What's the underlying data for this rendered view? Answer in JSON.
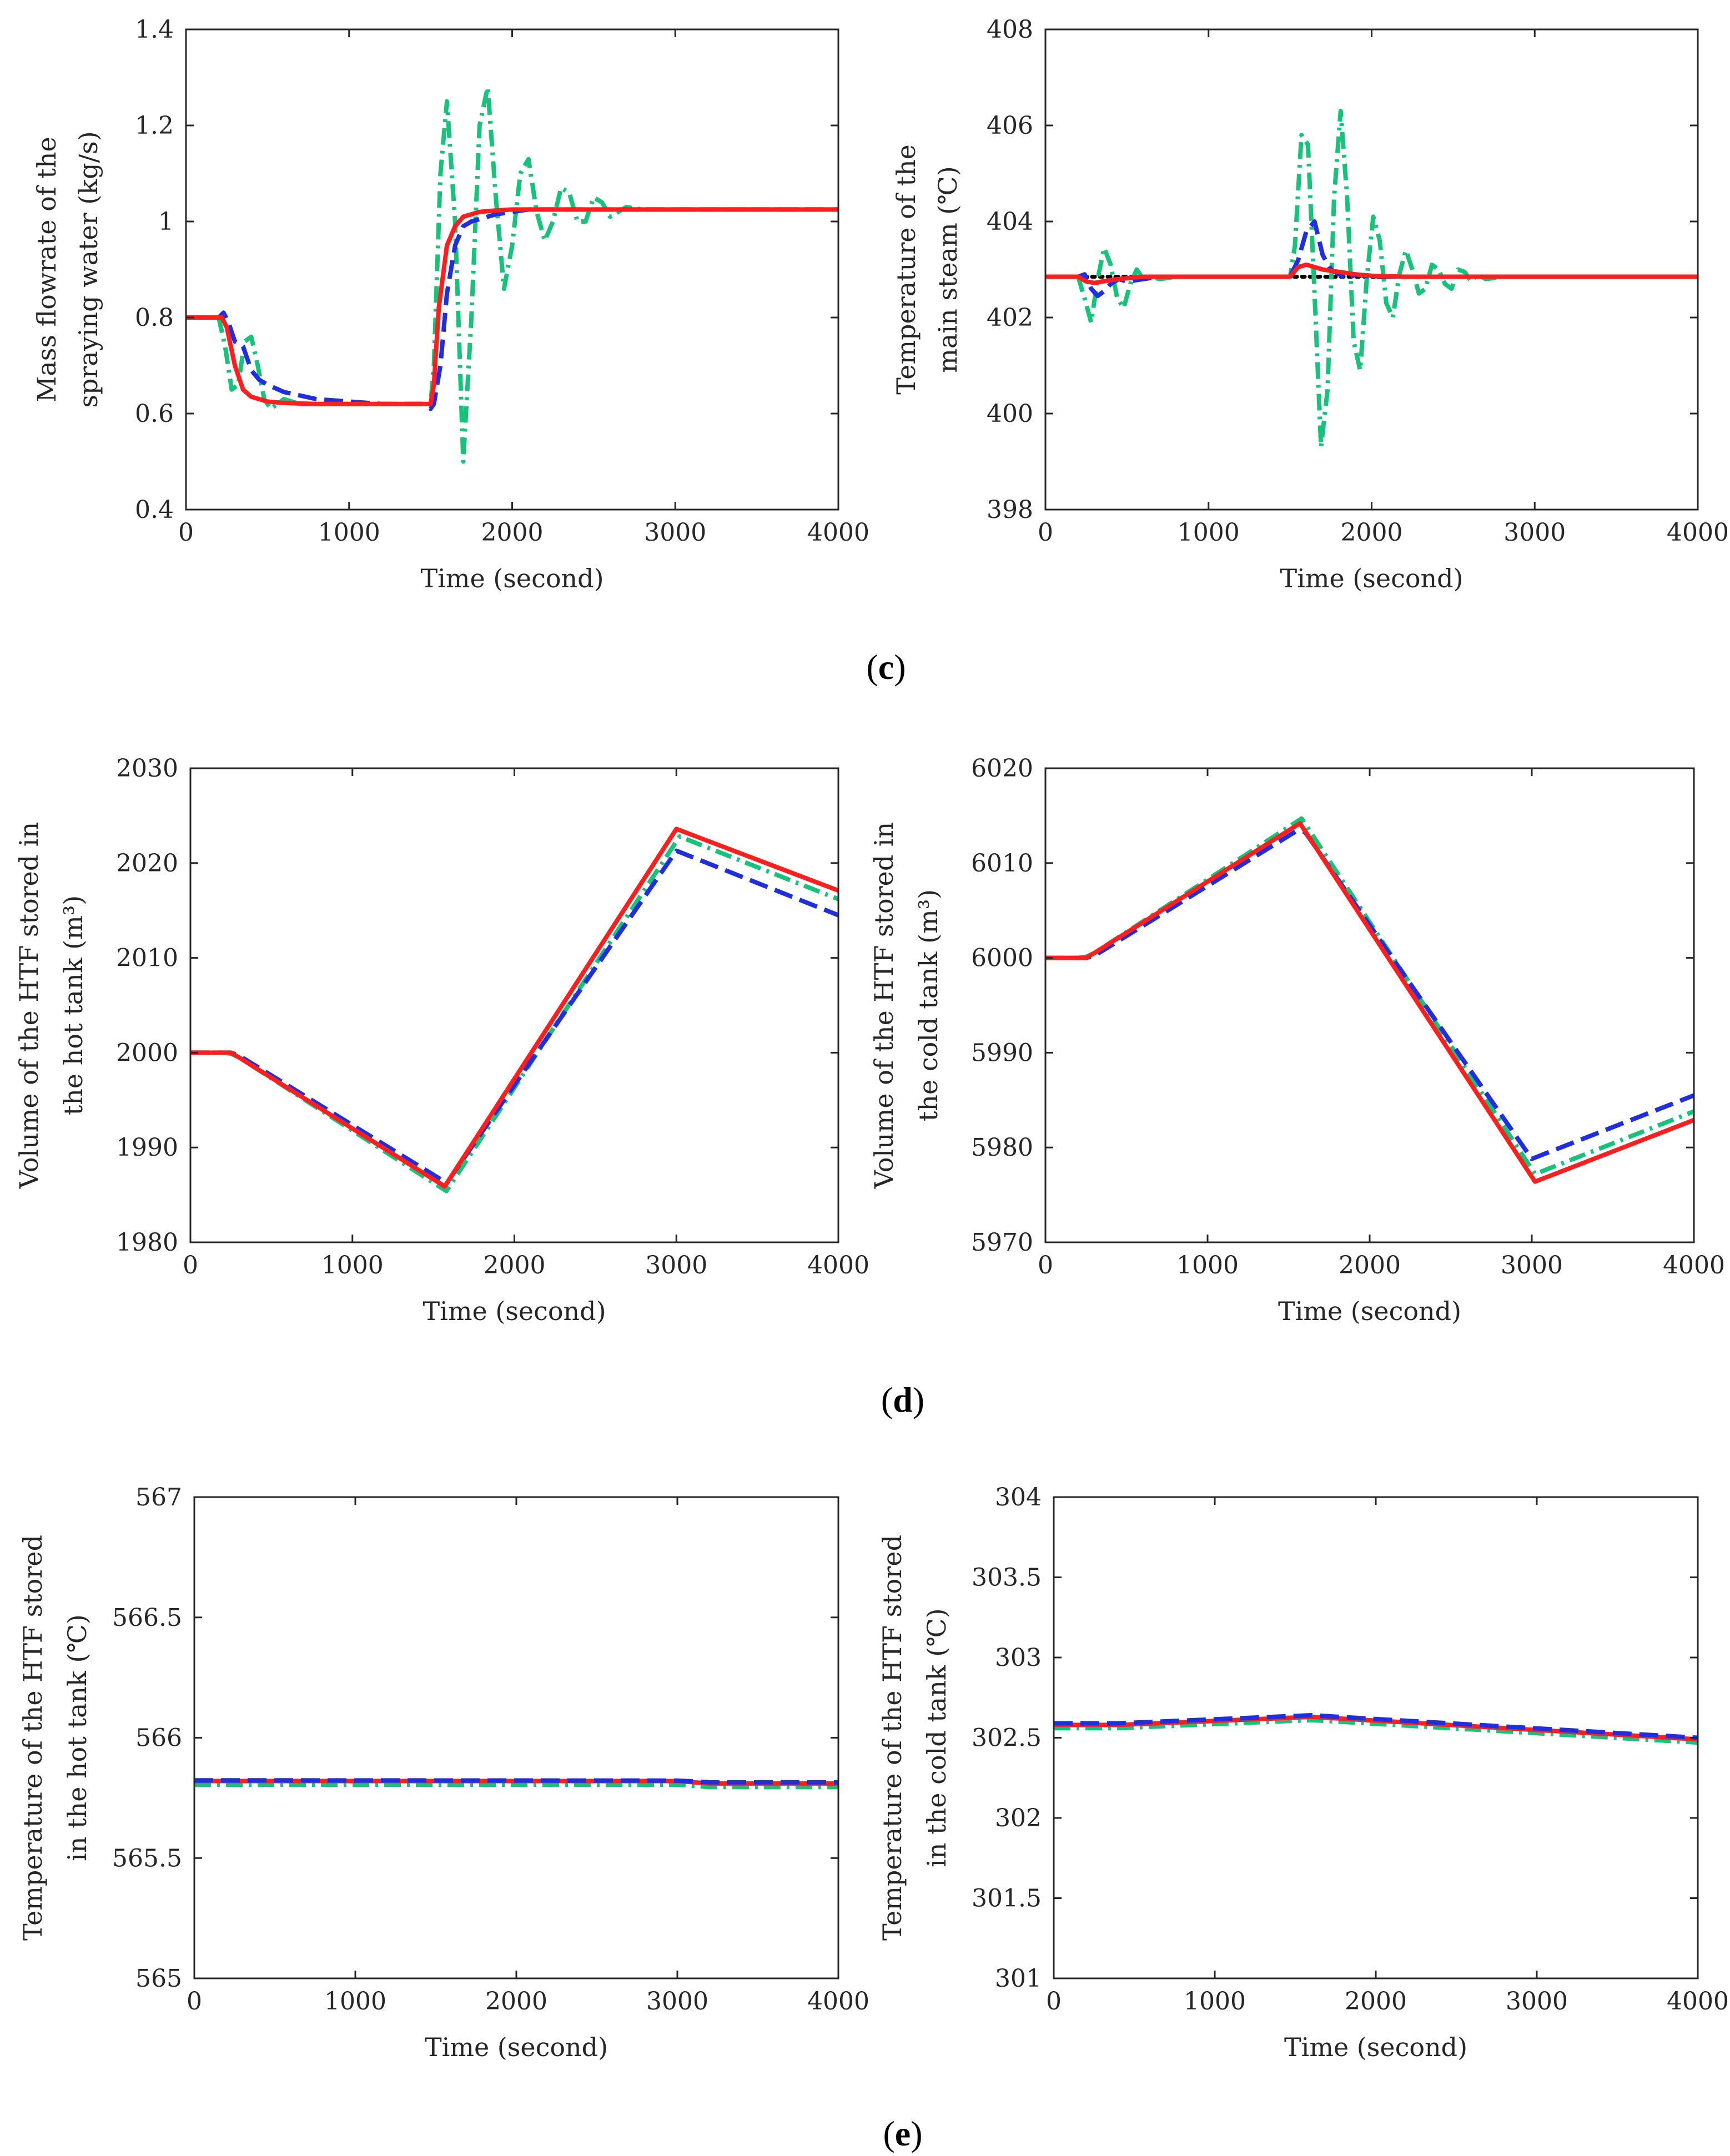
{
  "colors": {
    "red": "#ff1f1f",
    "blue": "#1f2fe0",
    "green": "#19c27a",
    "black": "#000000",
    "axis": "#262626"
  },
  "panel_labels": [
    {
      "id": "c",
      "open": "(",
      "letter": "c",
      "close": ")"
    },
    {
      "id": "d",
      "open": "(",
      "letter": "d",
      "close": ")"
    },
    {
      "id": "e",
      "open": "(",
      "letter": "e",
      "close": ")"
    }
  ],
  "chart_data": [
    {
      "id": "c-left",
      "type": "line",
      "xlabel": "Time (second)",
      "ylabel": [
        "Mass flowrate of the",
        "spraying water (kg/s)"
      ],
      "xlim": [
        0,
        4000
      ],
      "ylim": [
        0.4,
        1.4
      ],
      "xticks": [
        0,
        1000,
        2000,
        3000,
        4000
      ],
      "yticks": [
        0.4,
        0.6,
        0.8,
        1,
        1.2,
        1.4
      ],
      "ytick_labels": [
        "0.4",
        "0.6",
        "0.8",
        "1",
        "1.2",
        "1.4"
      ],
      "grid": false,
      "series": [
        {
          "color": "green",
          "style": "dashdot",
          "x": [
            0,
            200,
            240,
            280,
            320,
            360,
            400,
            440,
            480,
            520,
            560,
            600,
            650,
            700,
            800,
            1000,
            1500,
            1520,
            1560,
            1600,
            1650,
            1700,
            1750,
            1800,
            1850,
            1900,
            1950,
            2000,
            2050,
            2100,
            2150,
            2200,
            2250,
            2300,
            2350,
            2400,
            2450,
            2500,
            2550,
            2600,
            2650,
            2700,
            2800,
            3000,
            4000
          ],
          "y": [
            0.8,
            0.8,
            0.74,
            0.65,
            0.66,
            0.75,
            0.76,
            0.7,
            0.63,
            0.61,
            0.62,
            0.63,
            0.625,
            0.62,
            0.62,
            0.62,
            0.62,
            0.7,
            1.1,
            1.25,
            1.0,
            0.5,
            0.8,
            1.2,
            1.28,
            1.05,
            0.86,
            0.95,
            1.1,
            1.13,
            1.02,
            0.96,
            1.0,
            1.07,
            1.06,
            1.0,
            1.0,
            1.05,
            1.04,
            1.01,
            1.02,
            1.03,
            1.025,
            1.025,
            1.025
          ]
        },
        {
          "color": "blue",
          "style": "dashed",
          "x": [
            0,
            200,
            230,
            260,
            300,
            350,
            400,
            450,
            500,
            600,
            800,
            1000,
            1200,
            1450,
            1500,
            1520,
            1560,
            1600,
            1650,
            1700,
            1750,
            1800,
            1900,
            2000,
            2100,
            2200,
            2400,
            3000,
            4000
          ],
          "y": [
            0.8,
            0.8,
            0.81,
            0.79,
            0.75,
            0.74,
            0.69,
            0.67,
            0.66,
            0.645,
            0.63,
            0.625,
            0.62,
            0.62,
            0.61,
            0.62,
            0.7,
            0.85,
            0.95,
            0.99,
            1.0,
            1.005,
            1.015,
            1.02,
            1.025,
            1.025,
            1.025,
            1.025,
            1.025
          ]
        },
        {
          "color": "red",
          "style": "solid",
          "x": [
            0,
            220,
            250,
            300,
            350,
            400,
            500,
            600,
            800,
            1000,
            1500,
            1520,
            1550,
            1600,
            1650,
            1700,
            1800,
            1900,
            2000,
            2200,
            2500,
            3000,
            4000
          ],
          "y": [
            0.8,
            0.8,
            0.78,
            0.7,
            0.65,
            0.635,
            0.625,
            0.622,
            0.62,
            0.62,
            0.62,
            0.66,
            0.82,
            0.95,
            0.99,
            1.01,
            1.02,
            1.023,
            1.025,
            1.025,
            1.025,
            1.025,
            1.025
          ]
        }
      ]
    },
    {
      "id": "c-right",
      "type": "line",
      "xlabel": "Time (second)",
      "ylabel": [
        "Temperature of the",
        "main steam (℃)"
      ],
      "xlim": [
        0,
        4000
      ],
      "ylim": [
        398,
        408
      ],
      "xticks": [
        0,
        1000,
        2000,
        3000,
        4000
      ],
      "yticks": [
        398,
        400,
        402,
        404,
        406,
        408
      ],
      "ytick_labels": [
        "398",
        "400",
        "402",
        "404",
        "406",
        "408"
      ],
      "grid": false,
      "series": [
        {
          "color": "black",
          "style": "dotted",
          "x": [
            0,
            4000
          ],
          "y": [
            402.85,
            402.85
          ]
        },
        {
          "color": "green",
          "style": "dashdot",
          "x": [
            0,
            200,
            240,
            280,
            320,
            360,
            400,
            440,
            480,
            520,
            560,
            600,
            650,
            700,
            800,
            1000,
            1500,
            1530,
            1570,
            1610,
            1650,
            1690,
            1730,
            1770,
            1810,
            1850,
            1890,
            1930,
            1970,
            2010,
            2050,
            2090,
            2130,
            2170,
            2210,
            2250,
            2290,
            2330,
            2370,
            2410,
            2450,
            2490,
            2530,
            2570,
            2610,
            2650,
            2700,
            2800,
            3000,
            4000
          ],
          "y": [
            402.85,
            402.85,
            402.4,
            401.9,
            402.8,
            403.45,
            403.1,
            402.4,
            402.2,
            402.7,
            403.0,
            402.8,
            402.85,
            402.8,
            402.85,
            402.85,
            402.85,
            403.5,
            405.8,
            405.6,
            402.5,
            399.3,
            400.5,
            404.5,
            406.3,
            404.5,
            401.5,
            400.9,
            402.8,
            404.1,
            403.6,
            402.3,
            402.0,
            402.9,
            403.4,
            403.0,
            402.5,
            402.6,
            403.1,
            403.0,
            402.7,
            402.6,
            403.0,
            402.95,
            402.75,
            402.9,
            402.8,
            402.85,
            402.85,
            402.85
          ]
        },
        {
          "color": "blue",
          "style": "dashed",
          "x": [
            0,
            200,
            240,
            280,
            320,
            360,
            400,
            450,
            500,
            600,
            700,
            1000,
            1500,
            1550,
            1600,
            1650,
            1700,
            1750,
            1800,
            1850,
            1900,
            2000,
            2100,
            2300,
            3000,
            4000
          ],
          "y": [
            402.85,
            402.85,
            402.9,
            402.6,
            402.45,
            402.55,
            402.7,
            402.8,
            402.75,
            402.8,
            402.85,
            402.85,
            402.85,
            403.2,
            403.8,
            404.0,
            403.3,
            403.0,
            402.9,
            402.8,
            402.9,
            402.85,
            402.85,
            402.85,
            402.85,
            402.85
          ]
        },
        {
          "color": "red",
          "style": "solid",
          "x": [
            0,
            200,
            250,
            300,
            400,
            500,
            600,
            800,
            1000,
            1500,
            1550,
            1600,
            1650,
            1700,
            1800,
            1900,
            2000,
            2200,
            3000,
            4000
          ],
          "y": [
            402.85,
            402.85,
            402.75,
            402.72,
            402.78,
            402.82,
            402.85,
            402.85,
            402.85,
            402.85,
            403.05,
            403.1,
            403.05,
            403.0,
            402.95,
            402.9,
            402.87,
            402.85,
            402.85,
            402.85
          ]
        }
      ]
    },
    {
      "id": "d-left",
      "type": "line",
      "xlabel": "Time (second)",
      "ylabel": [
        "Volume of the HTF stored in",
        "the hot tank (m³)"
      ],
      "xlim": [
        0,
        4000
      ],
      "ylim": [
        1980,
        2030
      ],
      "xticks": [
        0,
        1000,
        2000,
        3000,
        4000
      ],
      "yticks": [
        1980,
        1990,
        2000,
        2010,
        2020,
        2030
      ],
      "ytick_labels": [
        "1980",
        "1990",
        "2000",
        "2010",
        "2020",
        "2030"
      ],
      "grid": false,
      "series": [
        {
          "color": "green",
          "style": "dashdot",
          "x": [
            0,
            200,
            250,
            300,
            1580,
            3020,
            4000
          ],
          "y": [
            2000,
            2000,
            1999.9,
            1999.5,
            1985.4,
            2022.8,
            2016.2
          ]
        },
        {
          "color": "blue",
          "style": "dashed",
          "x": [
            0,
            250,
            300,
            1550,
            1600,
            3000,
            4000
          ],
          "y": [
            2000,
            2000,
            1999.7,
            1986.6,
            1986.7,
            2021.3,
            2014.5
          ]
        },
        {
          "color": "red",
          "style": "solid",
          "x": [
            0,
            250,
            300,
            1570,
            3000,
            4000
          ],
          "y": [
            2000,
            2000,
            1999.5,
            1985.9,
            2023.6,
            2017.1
          ]
        }
      ]
    },
    {
      "id": "d-right",
      "type": "line",
      "xlabel": "Time (second)",
      "ylabel": [
        "Volume of the HTF stored in",
        "the cold tank (m³)"
      ],
      "xlim": [
        0,
        4000
      ],
      "ylim": [
        5970,
        6020
      ],
      "xticks": [
        0,
        1000,
        2000,
        3000,
        4000
      ],
      "yticks": [
        5970,
        5980,
        5990,
        6000,
        6010,
        6020
      ],
      "ytick_labels": [
        "5970",
        "5980",
        "5990",
        "6000",
        "6010",
        "6020"
      ],
      "grid": false,
      "series": [
        {
          "color": "green",
          "style": "dashdot",
          "x": [
            0,
            200,
            250,
            300,
            1580,
            3020,
            4000
          ],
          "y": [
            6000,
            6000,
            6000.1,
            6000.5,
            6014.7,
            5977.2,
            5983.8
          ]
        },
        {
          "color": "blue",
          "style": "dashed",
          "x": [
            0,
            250,
            300,
            1550,
            1600,
            3000,
            4000
          ],
          "y": [
            6000,
            6000,
            6000.2,
            6013.4,
            6013.3,
            5978.8,
            5985.5
          ]
        },
        {
          "color": "red",
          "style": "solid",
          "x": [
            0,
            250,
            300,
            1570,
            3020,
            4000
          ],
          "y": [
            6000,
            6000,
            6000.5,
            6014.2,
            5976.4,
            5982.9
          ]
        }
      ]
    },
    {
      "id": "e-left",
      "type": "line",
      "xlabel": "Time (second)",
      "ylabel": [
        "Temperature of the HTF stored",
        "in the hot tank (℃)"
      ],
      "xlim": [
        0,
        4000
      ],
      "ylim": [
        565,
        567
      ],
      "xticks": [
        0,
        1000,
        2000,
        3000,
        4000
      ],
      "yticks": [
        565,
        565.5,
        566,
        566.5,
        567
      ],
      "ytick_labels": [
        "565",
        "565.5",
        "566",
        "566.5",
        "567"
      ],
      "grid": false,
      "series": [
        {
          "color": "green",
          "style": "dashdot",
          "x": [
            0,
            3000,
            3200,
            4000
          ],
          "y": [
            565.805,
            565.805,
            565.795,
            565.795
          ]
        },
        {
          "color": "red",
          "style": "solid",
          "x": [
            0,
            3000,
            3200,
            4000
          ],
          "y": [
            565.82,
            565.82,
            565.81,
            565.81
          ]
        },
        {
          "color": "blue",
          "style": "dashed",
          "x": [
            0,
            3000,
            3200,
            4000
          ],
          "y": [
            565.823,
            565.822,
            565.815,
            565.815
          ]
        }
      ]
    },
    {
      "id": "e-right",
      "type": "line",
      "xlabel": "Time (second)",
      "ylabel": [
        "Temperature of the HTF stored",
        "in the cold tank (℃)"
      ],
      "xlim": [
        0,
        4000
      ],
      "ylim": [
        301,
        304
      ],
      "xticks": [
        0,
        1000,
        2000,
        3000,
        4000
      ],
      "yticks": [
        301,
        301.5,
        302,
        302.5,
        303,
        303.5,
        304
      ],
      "ytick_labels": [
        "301",
        "301.5",
        "302",
        "302.5",
        "303",
        "303.5",
        "304"
      ],
      "grid": false,
      "series": [
        {
          "color": "green",
          "style": "dashdot",
          "x": [
            0,
            400,
            1600,
            4000
          ],
          "y": [
            302.56,
            302.56,
            302.61,
            302.47
          ]
        },
        {
          "color": "red",
          "style": "solid",
          "x": [
            0,
            400,
            1600,
            4000
          ],
          "y": [
            302.58,
            302.58,
            302.63,
            302.49
          ]
        },
        {
          "color": "blue",
          "style": "dashed",
          "x": [
            0,
            400,
            1600,
            4000
          ],
          "y": [
            302.59,
            302.59,
            302.64,
            302.5
          ]
        }
      ]
    }
  ]
}
